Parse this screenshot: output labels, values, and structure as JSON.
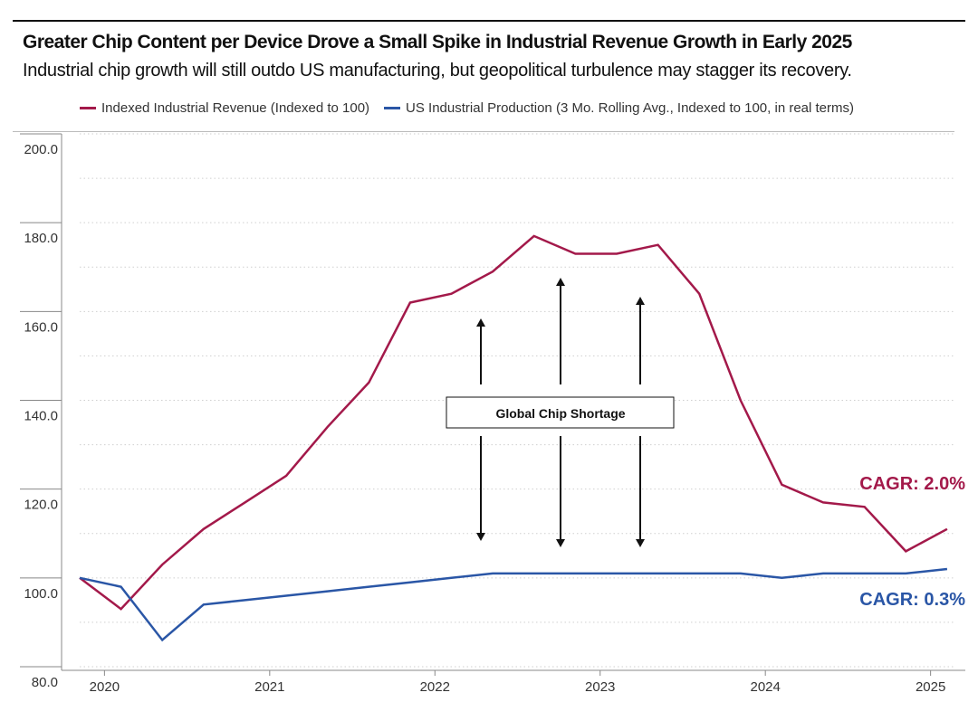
{
  "title": "Greater Chip Content per Device Drove a Small Spike in Industrial Revenue Growth in Early 2025",
  "subtitle": "Industrial chip growth will still outdo US manufacturing, but geopolitical turbulence may stagger its recovery.",
  "colors": {
    "revenue": "#a3194a",
    "production": "#2a56a6"
  },
  "chart_data": {
    "type": "line",
    "title": "Greater Chip Content per Device Drove a Small Spike in Industrial Revenue Growth in Early 2025",
    "xlabel": "",
    "ylabel": "",
    "x_range": [
      2019.85,
      2025.15
    ],
    "ylim": [
      80,
      200
    ],
    "y_ticks": [
      "80.0",
      "100.0",
      "120.0",
      "140.0",
      "160.0",
      "180.0",
      "200.0"
    ],
    "x_ticks": [
      "2020",
      "2021",
      "2022",
      "2023",
      "2024",
      "2025"
    ],
    "series": [
      {
        "name": "Indexed Industrial Revenue (Indexed to 100)",
        "color": "#a3194a",
        "x": [
          2019.85,
          2020.1,
          2020.35,
          2020.6,
          2020.85,
          2021.1,
          2021.35,
          2021.6,
          2021.85,
          2022.1,
          2022.35,
          2022.6,
          2022.85,
          2023.1,
          2023.35,
          2023.6,
          2023.85,
          2024.1,
          2024.35,
          2024.6,
          2024.85,
          2025.1
        ],
        "y": [
          100,
          93,
          103,
          111,
          117,
          123,
          134,
          144,
          162,
          164,
          169,
          177,
          173,
          173,
          175,
          164,
          140,
          121,
          117,
          116,
          106,
          111
        ]
      },
      {
        "name": "US Industrial Production (3 Mo. Rolling Avg., Indexed to 100, in real terms)",
        "color": "#2a56a6",
        "x": [
          2019.85,
          2020.1,
          2020.35,
          2020.6,
          2020.85,
          2021.1,
          2021.35,
          2021.6,
          2021.85,
          2022.1,
          2022.35,
          2022.6,
          2022.85,
          2023.1,
          2023.35,
          2023.6,
          2023.85,
          2024.1,
          2024.35,
          2024.6,
          2024.85,
          2025.1
        ],
        "y": [
          100,
          98,
          86,
          94,
          95,
          96,
          97,
          98,
          99,
          100,
          101,
          101,
          101,
          101,
          101,
          101,
          101,
          100,
          101,
          101,
          101,
          102
        ]
      }
    ],
    "annotations": {
      "shortage_label": "Global Chip Shortage",
      "revenue_cagr": "CAGR: 2.0%",
      "production_cagr": "CAGR: 0.3%"
    }
  }
}
